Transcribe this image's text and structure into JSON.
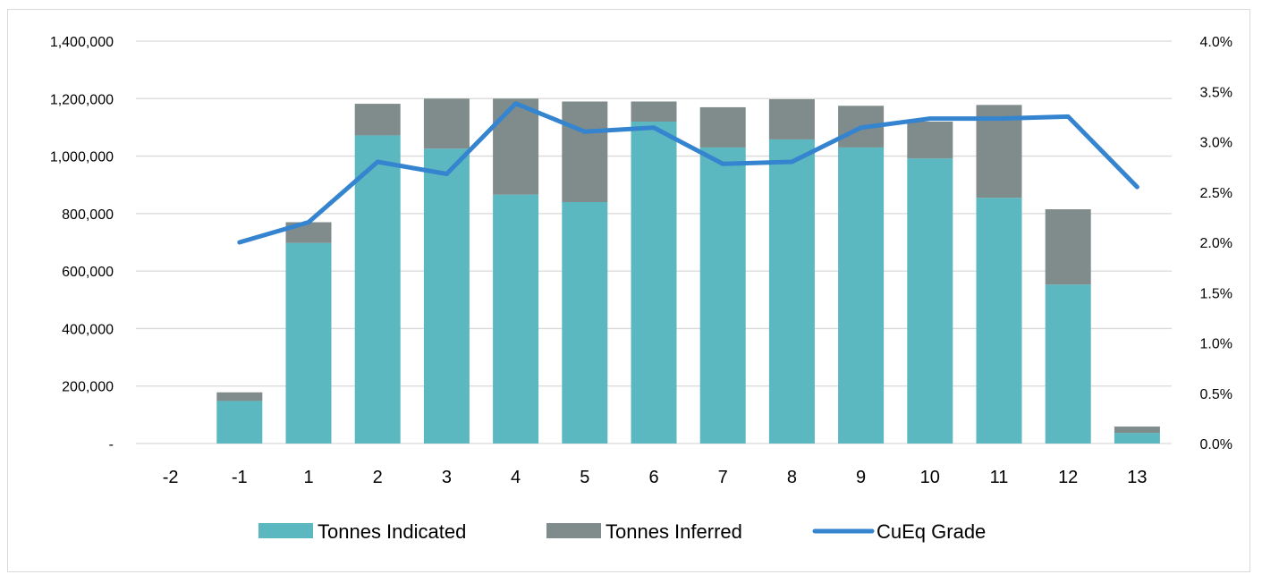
{
  "chart_data": {
    "type": "bar",
    "stacked": true,
    "categories": [
      "-2",
      "-1",
      "1",
      "2",
      "3",
      "4",
      "5",
      "6",
      "7",
      "8",
      "9",
      "10",
      "11",
      "12",
      "13"
    ],
    "series": [
      {
        "name": "Tonnes Indicated",
        "type": "bar",
        "axis": "left",
        "color": "#5bb7c0",
        "values": [
          0,
          148000,
          698000,
          1072000,
          1026000,
          866000,
          840000,
          1120000,
          1030000,
          1058000,
          1030000,
          992000,
          855000,
          553000,
          37000
        ]
      },
      {
        "name": "Tonnes Inferred",
        "type": "bar",
        "axis": "left",
        "color": "#7f8c8b",
        "values": [
          0,
          30000,
          72000,
          110000,
          174000,
          334000,
          350000,
          70000,
          140000,
          140000,
          145000,
          128000,
          323000,
          262000,
          22000
        ]
      },
      {
        "name": "CuEq Grade",
        "type": "line",
        "axis": "right",
        "color": "#3584d0",
        "values": [
          null,
          2.0,
          2.2,
          2.8,
          2.68,
          3.38,
          3.1,
          3.14,
          2.78,
          2.8,
          3.14,
          3.23,
          3.23,
          3.25,
          2.55
        ]
      }
    ],
    "y_left": {
      "min": 0,
      "max": 1400000,
      "ticks": [
        0,
        200000,
        400000,
        600000,
        800000,
        1000000,
        1200000,
        1400000
      ],
      "tick_labels": [
        "-",
        "200,000",
        "400,000",
        "600,000",
        "800,000",
        "1,000,000",
        "1,200,000",
        "1,400,000"
      ]
    },
    "y_right": {
      "min": 0,
      "max": 4.0,
      "ticks": [
        0,
        0.5,
        1.0,
        1.5,
        2.0,
        2.5,
        3.0,
        3.5,
        4.0
      ],
      "tick_labels": [
        "0.0%",
        "0.5%",
        "1.0%",
        "1.5%",
        "2.0%",
        "2.5%",
        "3.0%",
        "3.5%",
        "4.0%"
      ]
    },
    "grid": true,
    "legend_position": "bottom"
  }
}
